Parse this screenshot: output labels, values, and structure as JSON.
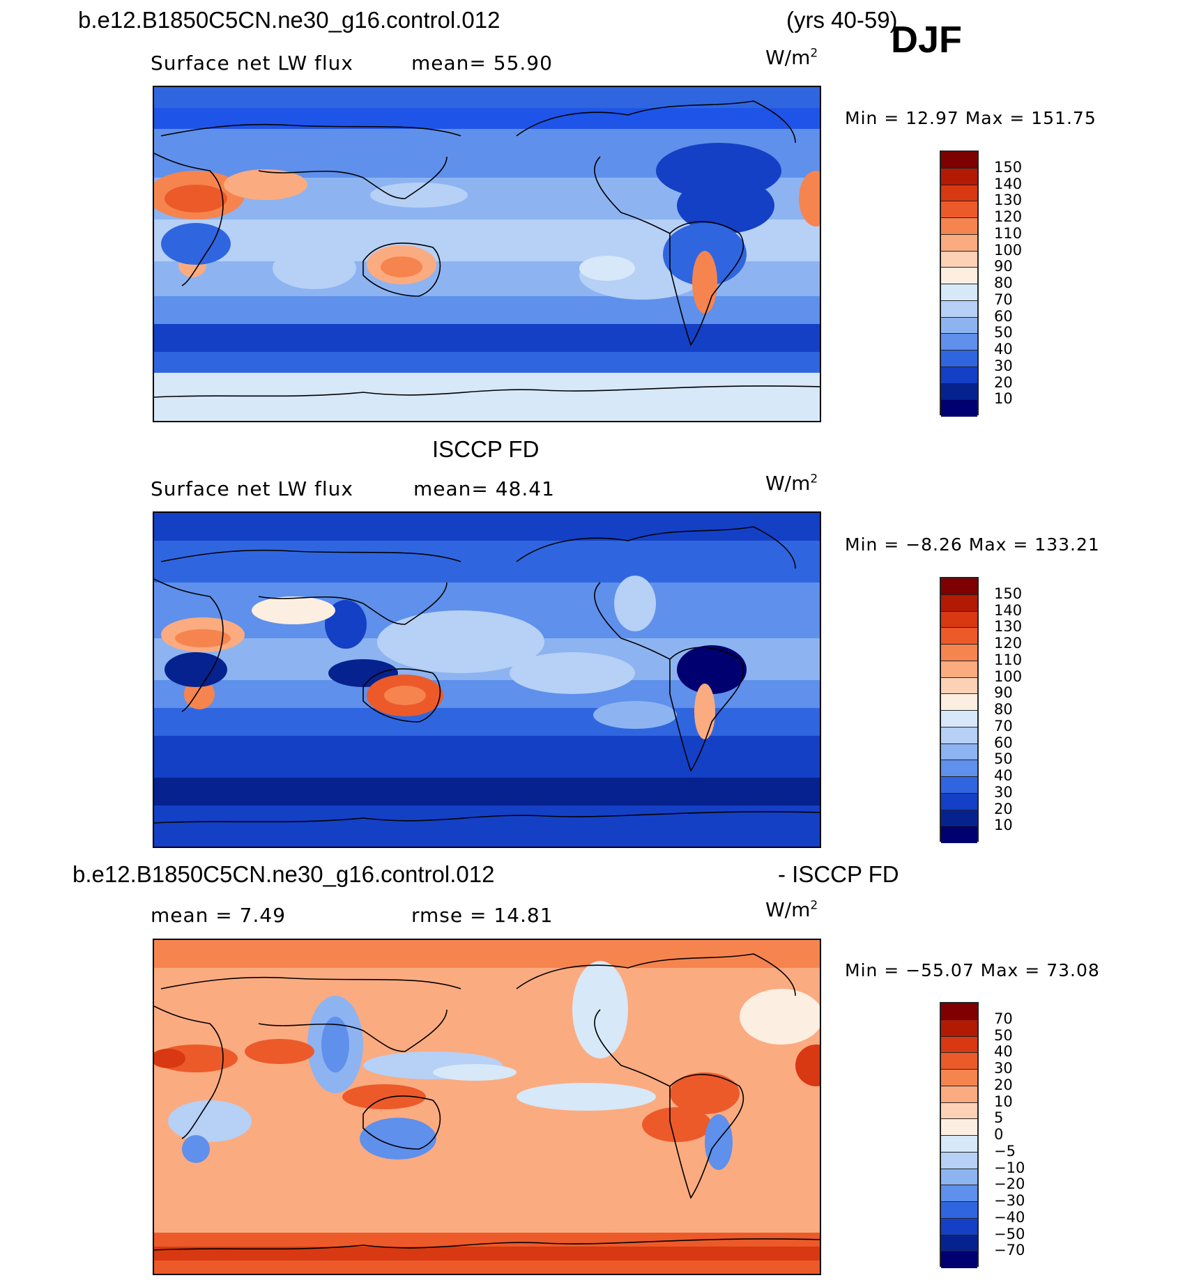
{
  "header": {
    "case_name": "b.e12.B1850C5CN.ne30_g16.control.012",
    "years": "(yrs 40-59)",
    "season": "DJF"
  },
  "panels": [
    {
      "title": "",
      "variable": "Surface net LW flux",
      "stat1": "mean=  55.90",
      "stat2": "",
      "units": "W/m",
      "units_exp": "2",
      "minmax": "Min =   12.97 Max =  151.75",
      "type": "absolute",
      "colorbar_levels": [
        "150",
        "140",
        "130",
        "120",
        "110",
        "100",
        "90",
        "80",
        "70",
        "60",
        "50",
        "40",
        "30",
        "20",
        "10"
      ]
    },
    {
      "title": "ISCCP FD",
      "variable": "Surface net LW flux",
      "stat1": "mean=  48.41",
      "stat2": "",
      "units": "W/m",
      "units_exp": "2",
      "minmax": "Min =  −8.26 Max =  133.21",
      "type": "absolute",
      "colorbar_levels": [
        "150",
        "140",
        "130",
        "120",
        "110",
        "100",
        "90",
        "80",
        "70",
        "60",
        "50",
        "40",
        "30",
        "20",
        "10"
      ]
    },
    {
      "title_left": "b.e12.B1850C5CN.ne30_g16.control.012",
      "title_right": "- ISCCP FD",
      "variable": "",
      "stat1": "mean =   7.49",
      "stat2": "rmse =   14.81",
      "units": "W/m",
      "units_exp": "2",
      "minmax": "Min = −55.07 Max =   73.08",
      "type": "difference",
      "colorbar_levels": [
        "70",
        "50",
        "40",
        "30",
        "20",
        "10",
        "5",
        "0",
        "−5",
        "−10",
        "−20",
        "−30",
        "−40",
        "−50",
        "−70"
      ]
    }
  ],
  "colors": {
    "absolute_scale": [
      "#7f0000",
      "#b31a04",
      "#d83812",
      "#ec5a2a",
      "#f6844f",
      "#fbab80",
      "#fcd1b6",
      "#fdeee2",
      "#d7e8f8",
      "#b6d0f6",
      "#8db4f1",
      "#5f90eb",
      "#2f66e0",
      "#1440c6",
      "#06228f",
      "#000070"
    ],
    "difference_scale": [
      "#7f0000",
      "#b31a04",
      "#d83812",
      "#ec5a2a",
      "#f6844f",
      "#fbab80",
      "#fcd1b6",
      "#fdeee2",
      "#d7e8f8",
      "#b6d0f6",
      "#8db4f1",
      "#5f90eb",
      "#2f66e0",
      "#1440c6",
      "#06228f",
      "#000070"
    ]
  }
}
